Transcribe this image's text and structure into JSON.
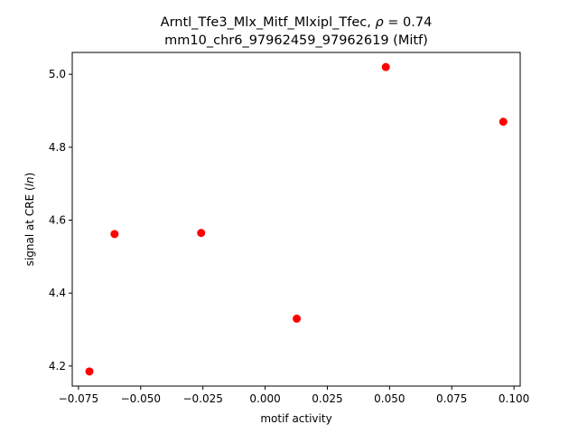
{
  "chart_data": {
    "type": "scatter",
    "title_line1": "Arntl_Tfe3_Mlx_Mitf_Mlxipl_Tfec, ρ = 0.74",
    "title_line2": "mm10_chr6_97962459_97962619 (Mitf)",
    "xlabel": "motif activity",
    "ylabel": "signal at CRE (ln)",
    "xlim": [
      -0.0775,
      0.1025
    ],
    "ylim": [
      4.145,
      5.06
    ],
    "xticks": [
      -0.075,
      -0.05,
      -0.025,
      0.0,
      0.025,
      0.05,
      0.075,
      0.1
    ],
    "xtick_labels": [
      "−0.075",
      "−0.050",
      "−0.025",
      "0.000",
      "0.025",
      "0.050",
      "0.075",
      "0.100"
    ],
    "yticks": [
      4.2,
      4.4,
      4.6,
      4.8,
      5.0
    ],
    "ytick_labels": [
      "4.2",
      "4.4",
      "4.6",
      "4.8",
      "5.0"
    ],
    "grid": false,
    "marker_color": "#ff0000",
    "points": [
      {
        "x": -0.0706,
        "y": 4.185
      },
      {
        "x": -0.0605,
        "y": 4.562
      },
      {
        "x": -0.0257,
        "y": 4.565
      },
      {
        "x": 0.0127,
        "y": 4.33
      },
      {
        "x": 0.0485,
        "y": 5.02
      },
      {
        "x": 0.0957,
        "y": 4.87
      }
    ]
  }
}
